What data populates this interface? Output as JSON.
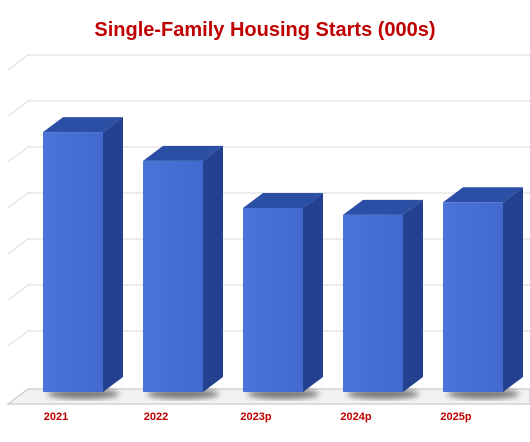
{
  "chart_data": {
    "type": "bar",
    "title": "Single-Family Housing Starts (000s)",
    "categories": [
      "2021",
      "2022",
      "2023p",
      "2024p",
      "2025p"
    ],
    "values": [
      1130,
      1005,
      800,
      770,
      825
    ],
    "ylim": [
      0,
      1400
    ],
    "grid": true,
    "colors": {
      "title": "#c00000",
      "tick_label": "#c00000",
      "bar_front": "#4169cf",
      "bar_side": "#24418f",
      "bar_top": "#2c4fa6",
      "grid": "#d9d9d9",
      "floor": "#bfbfbf"
    }
  }
}
